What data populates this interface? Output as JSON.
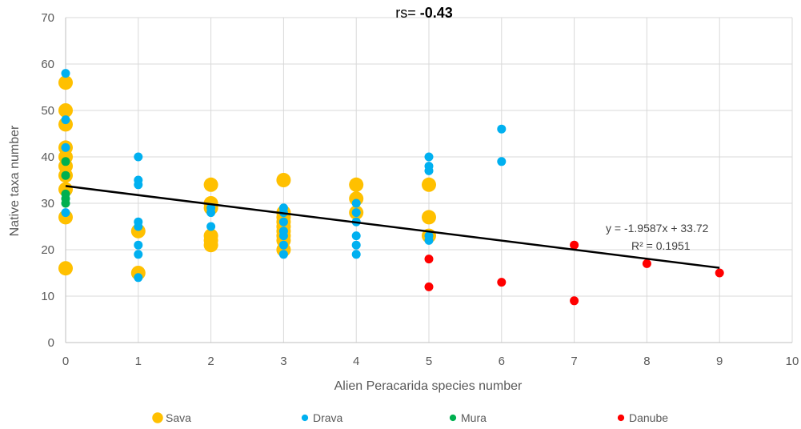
{
  "chart_data": {
    "type": "scatter",
    "title": "",
    "annotation": {
      "prefix": "rs= ",
      "value": "-0.43"
    },
    "xlabel": "Alien Peracarida species number",
    "ylabel": "Native taxa number",
    "xlim": [
      0,
      10
    ],
    "ylim": [
      0,
      70
    ],
    "xticks": [
      0,
      1,
      2,
      3,
      4,
      5,
      6,
      7,
      8,
      9,
      10
    ],
    "yticks": [
      0,
      10,
      20,
      30,
      40,
      50,
      60,
      70
    ],
    "grid": true,
    "legend_position": "bottom",
    "series": [
      {
        "name": "Sava",
        "color": "#FFC000",
        "marker_size": "large",
        "points": [
          [
            0,
            56
          ],
          [
            0,
            50
          ],
          [
            0,
            47
          ],
          [
            0,
            42
          ],
          [
            0,
            40
          ],
          [
            0,
            38
          ],
          [
            0,
            36
          ],
          [
            0,
            33
          ],
          [
            0,
            27
          ],
          [
            0,
            16
          ],
          [
            1,
            24
          ],
          [
            1,
            15
          ],
          [
            2,
            34
          ],
          [
            2,
            30
          ],
          [
            2,
            29
          ],
          [
            2,
            23
          ],
          [
            2,
            22
          ],
          [
            2,
            21
          ],
          [
            3,
            35
          ],
          [
            3,
            28
          ],
          [
            3,
            27
          ],
          [
            3,
            26
          ],
          [
            3,
            25
          ],
          [
            3,
            24
          ],
          [
            3,
            23
          ],
          [
            3,
            22
          ],
          [
            3,
            20
          ],
          [
            4,
            34
          ],
          [
            4,
            31
          ],
          [
            4,
            28
          ],
          [
            5,
            34
          ],
          [
            5,
            27
          ],
          [
            5,
            23
          ]
        ]
      },
      {
        "name": "Drava",
        "color": "#00B0F0",
        "marker_size": "small",
        "points": [
          [
            0,
            58
          ],
          [
            0,
            48
          ],
          [
            0,
            42
          ],
          [
            0,
            28
          ],
          [
            1,
            40
          ],
          [
            1,
            35
          ],
          [
            1,
            34
          ],
          [
            1,
            26
          ],
          [
            1,
            25
          ],
          [
            1,
            21
          ],
          [
            1,
            19
          ],
          [
            1,
            14
          ],
          [
            2,
            29
          ],
          [
            2,
            28
          ],
          [
            2,
            25
          ],
          [
            3,
            29
          ],
          [
            3,
            28
          ],
          [
            3,
            26
          ],
          [
            3,
            24
          ],
          [
            3,
            23
          ],
          [
            3,
            21
          ],
          [
            3,
            19
          ],
          [
            4,
            30
          ],
          [
            4,
            28
          ],
          [
            4,
            26
          ],
          [
            4,
            23
          ],
          [
            4,
            21
          ],
          [
            4,
            19
          ],
          [
            5,
            40
          ],
          [
            5,
            38
          ],
          [
            5,
            37
          ],
          [
            5,
            23
          ],
          [
            5,
            22
          ],
          [
            6,
            46
          ],
          [
            6,
            39
          ]
        ]
      },
      {
        "name": "Mura",
        "color": "#00B050",
        "marker_size": "small",
        "points": [
          [
            0,
            39
          ],
          [
            0,
            36
          ],
          [
            0,
            32
          ],
          [
            0,
            31
          ],
          [
            0,
            30
          ]
        ]
      },
      {
        "name": "Danube",
        "color": "#FF0000",
        "marker_size": "small",
        "points": [
          [
            5,
            18
          ],
          [
            5,
            12
          ],
          [
            6,
            13
          ],
          [
            7,
            21
          ],
          [
            7,
            9
          ],
          [
            8,
            17
          ],
          [
            9,
            15
          ]
        ]
      }
    ],
    "trendline": {
      "slope": -1.9587,
      "intercept": 33.72,
      "x_range": [
        0,
        9
      ],
      "color": "#000000",
      "equation": "y = -1.9587x + 33.72",
      "r_squared": "R² = 0.1951"
    }
  }
}
